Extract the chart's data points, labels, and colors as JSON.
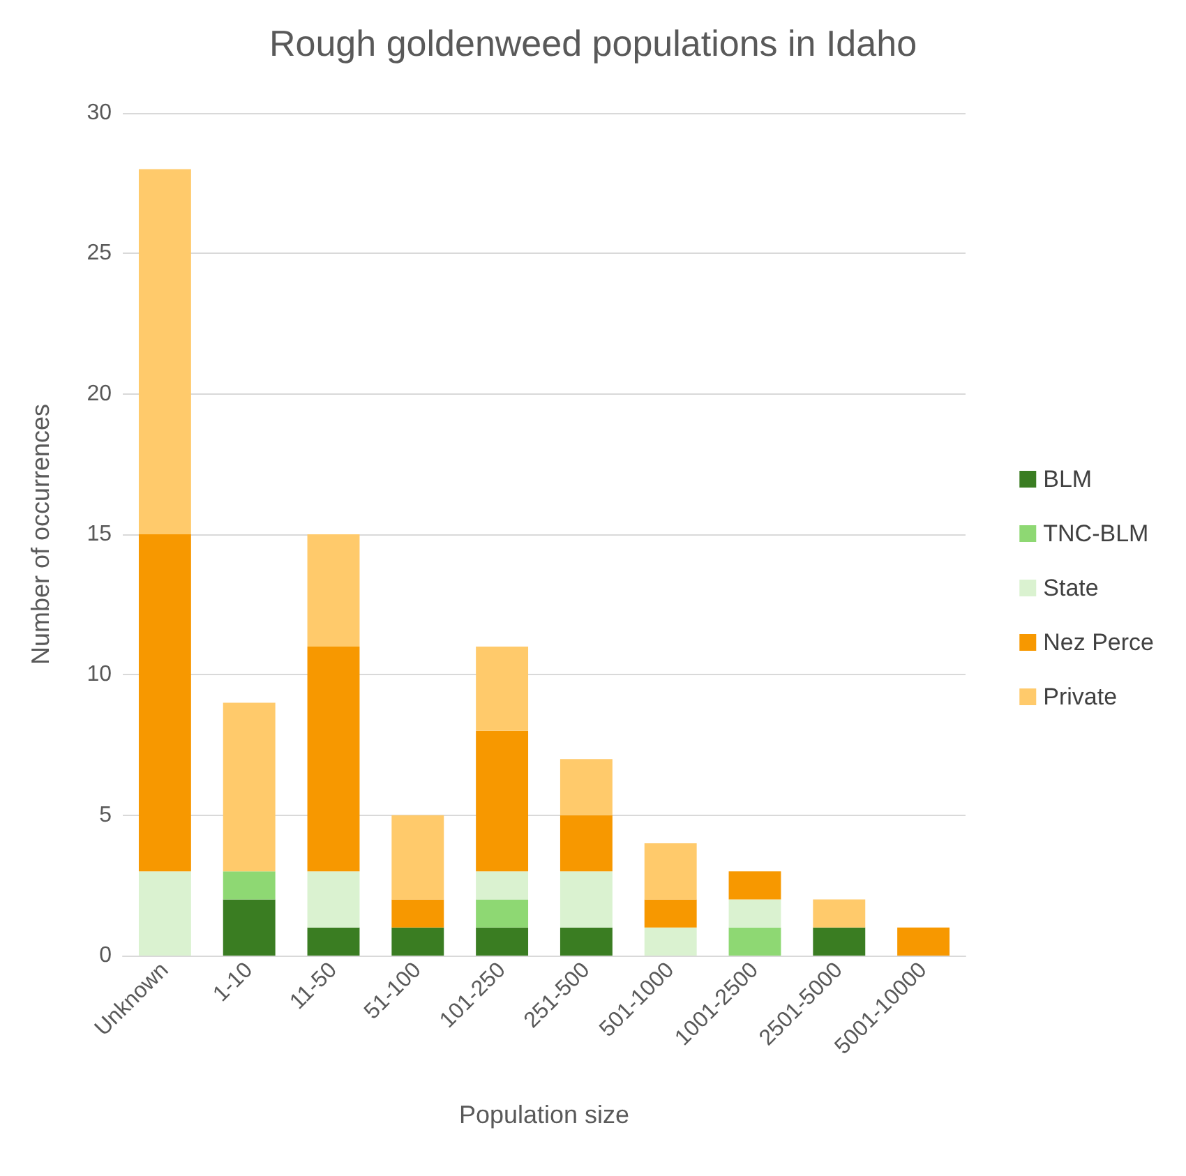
{
  "chart_data": {
    "type": "bar",
    "title": "Rough goldenweed populations in Idaho",
    "xlabel": "Population size",
    "ylabel": "Number of occurrences",
    "categories": [
      "Unknown",
      "1-10",
      "11-50",
      "51-100",
      "101-250",
      "251-500",
      "501-1000",
      "1001-2500",
      "2501-5000",
      "5001-10000"
    ],
    "stacked": true,
    "ylim": [
      0,
      30
    ],
    "yticks": [
      0,
      5,
      10,
      15,
      20,
      25,
      30
    ],
    "grid": "y",
    "legend": "right",
    "series": [
      {
        "name": "BLM",
        "color": "#3a7d22",
        "values": [
          0,
          2,
          1,
          1,
          1,
          1,
          0,
          0,
          1,
          0
        ]
      },
      {
        "name": "TNC-BLM",
        "color": "#8ed873",
        "values": [
          0,
          1,
          0,
          0,
          1,
          0,
          0,
          1,
          0,
          0
        ]
      },
      {
        "name": "State",
        "color": "#daf2d0",
        "values": [
          3,
          0,
          2,
          0,
          1,
          2,
          1,
          1,
          0,
          0
        ]
      },
      {
        "name": "Nez Perce",
        "color": "#f79800",
        "values": [
          12,
          0,
          8,
          1,
          5,
          2,
          1,
          1,
          0,
          1
        ]
      },
      {
        "name": "Private",
        "color": "#ffca6b",
        "values": [
          13,
          6,
          4,
          3,
          3,
          2,
          2,
          0,
          1,
          0
        ]
      }
    ]
  }
}
